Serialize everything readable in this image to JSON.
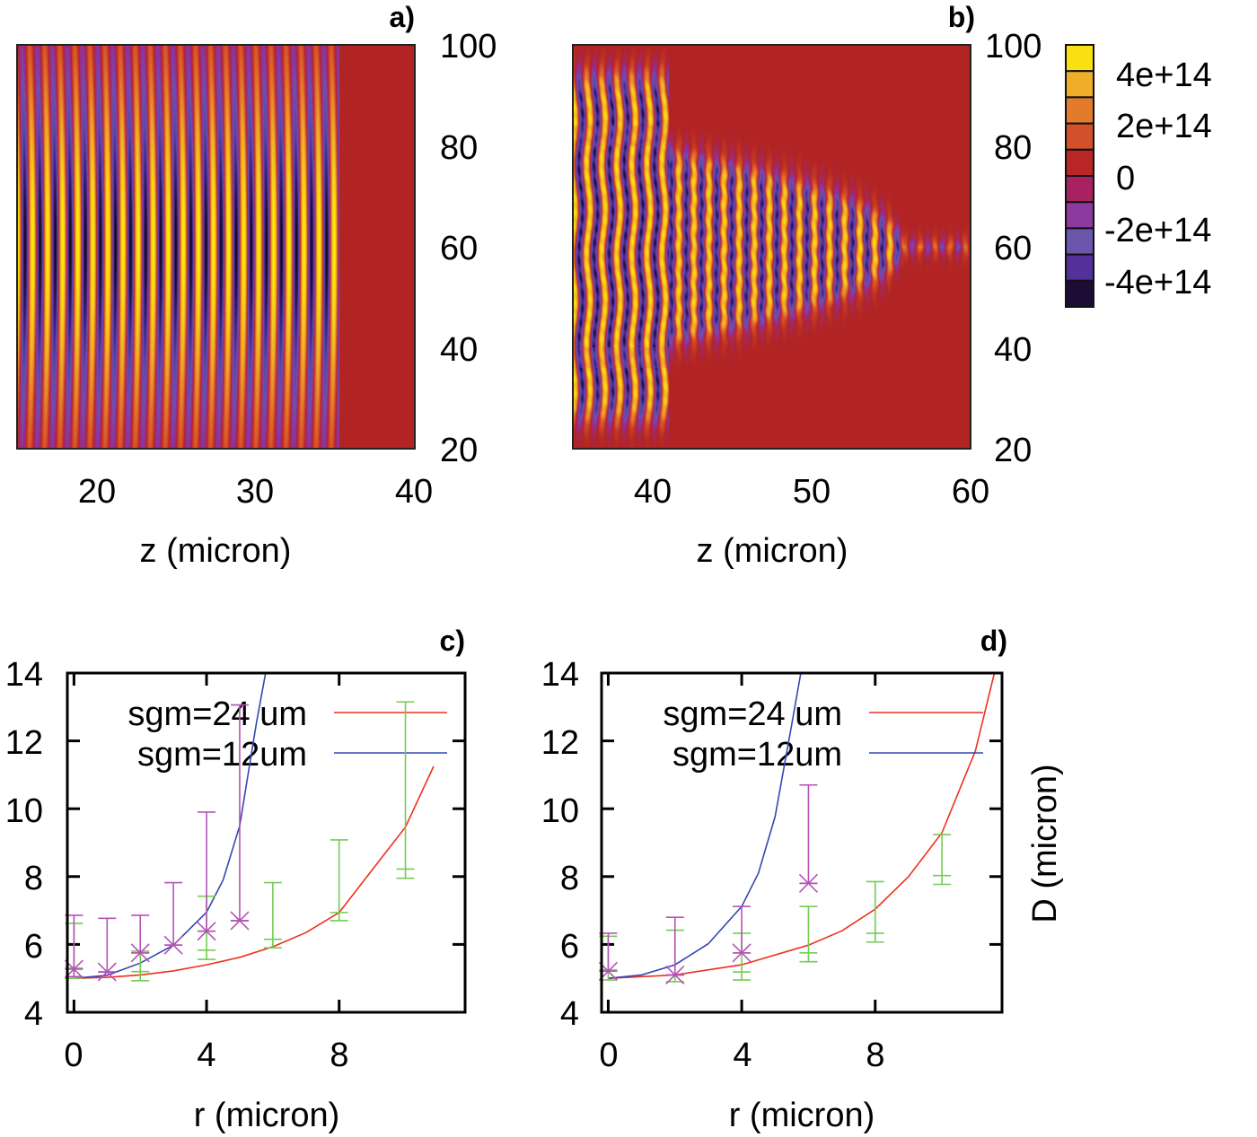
{
  "chart_data": [
    {
      "panel": "a)",
      "type": "heatmap",
      "xlabel": "z (micron)",
      "xlim": [
        15,
        40
      ],
      "ylim": [
        20,
        100
      ],
      "xticks": [
        "20",
        "30",
        "40"
      ],
      "yticks": [
        "100",
        "80",
        "60",
        "40",
        "20"
      ],
      "ytick_side": "right"
    },
    {
      "panel": "b)",
      "type": "heatmap",
      "xlabel": "z (micron)",
      "xlim": [
        35,
        60
      ],
      "ylim": [
        20,
        100
      ],
      "xticks": [
        "40",
        "50",
        "60"
      ],
      "yticks": [
        "100",
        "80",
        "60",
        "40",
        "20"
      ],
      "ytick_side": "right"
    },
    {
      "panel": "c)",
      "type": "line",
      "xlabel": "r (micron)",
      "ylabel": "",
      "xlim": [
        -0.2,
        11.8
      ],
      "ylim": [
        4,
        14
      ],
      "xticks": [
        "0",
        "4",
        "8"
      ],
      "yticks": [
        "14",
        "12",
        "10",
        "8",
        "6",
        "4"
      ],
      "legend_position": "top-left",
      "series": [
        {
          "name": "sgm=24 um",
          "color": "#f0301a",
          "kind": "curve",
          "x": [
            0,
            1,
            2,
            3,
            4,
            5,
            6,
            7,
            8,
            9,
            10,
            10.85
          ],
          "y": [
            5.0,
            5.03,
            5.1,
            5.22,
            5.4,
            5.62,
            5.93,
            6.35,
            6.94,
            8.2,
            9.46,
            11.25
          ]
        },
        {
          "name": "sgm=12um",
          "color": "#3448b0",
          "kind": "curve",
          "x": [
            0,
            1,
            2,
            3,
            4,
            4.5,
            5,
            5.5,
            5.78
          ],
          "y": [
            5.0,
            5.09,
            5.45,
            5.98,
            6.95,
            7.9,
            9.5,
            12.5,
            14.0
          ]
        },
        {
          "color": "#74cc52",
          "kind": "errorbars",
          "marker": "plus",
          "points": [
            {
              "x": 0,
              "y": 5.3,
              "low": 5.0,
              "high": 6.62
            },
            {
              "x": 2,
              "y": 5.2,
              "low": 4.93,
              "high": 5.8
            },
            {
              "x": 4,
              "y": 5.83,
              "low": 5.56,
              "high": 7.42
            },
            {
              "x": 6,
              "y": 6.15,
              "low": 5.9,
              "high": 7.82
            },
            {
              "x": 8,
              "y": 6.94,
              "low": 6.7,
              "high": 9.08
            },
            {
              "x": 10,
              "y": 8.22,
              "low": 7.95,
              "high": 13.15
            }
          ]
        },
        {
          "color": "#b452b4",
          "kind": "errorbars",
          "marker": "star",
          "points": [
            {
              "x": 0,
              "y": 5.27,
              "low": 5.05,
              "high": 6.86
            },
            {
              "x": 1,
              "y": 5.19,
              "low": 5.19,
              "high": 6.77
            },
            {
              "x": 2,
              "y": 5.75,
              "low": 5.75,
              "high": 6.86
            },
            {
              "x": 3,
              "y": 5.98,
              "low": 5.98,
              "high": 7.82
            },
            {
              "x": 4,
              "y": 6.39,
              "low": 6.39,
              "high": 9.9
            },
            {
              "x": 5,
              "y": 6.7,
              "low": 6.7,
              "high": 13.06
            }
          ]
        }
      ]
    },
    {
      "panel": "d)",
      "type": "line",
      "xlabel": "r (micron)",
      "ylabel": "D (micron)",
      "xlim": [
        -0.2,
        11.8
      ],
      "ylim": [
        4,
        14
      ],
      "xticks": [
        "0",
        "4",
        "8"
      ],
      "yticks": [
        "14",
        "12",
        "10",
        "8",
        "6",
        "4"
      ],
      "legend_position": "top-left",
      "series": [
        {
          "name": "sgm=24 um",
          "color": "#f0301a",
          "kind": "curve",
          "x": [
            0,
            2,
            4,
            6,
            7,
            8,
            9,
            10,
            11,
            11.57
          ],
          "y": [
            5.0,
            5.1,
            5.4,
            5.98,
            6.4,
            7.04,
            8.0,
            9.29,
            11.7,
            14.0
          ]
        },
        {
          "name": "sgm=12um",
          "color": "#3448b0",
          "kind": "curve",
          "x": [
            0,
            1,
            2,
            3,
            4,
            4.5,
            5,
            5.5,
            5.77
          ],
          "y": [
            5.0,
            5.1,
            5.4,
            6.02,
            7.12,
            8.1,
            9.77,
            12.5,
            14.0
          ]
        },
        {
          "color": "#74cc52",
          "kind": "errorbars",
          "marker": "plus",
          "points": [
            {
              "x": 0,
              "y": 5.25,
              "low": 4.95,
              "high": 6.24
            },
            {
              "x": 2,
              "y": 5.1,
              "low": 4.9,
              "high": 6.42
            },
            {
              "x": 4,
              "y": 5.19,
              "low": 4.95,
              "high": 6.33
            },
            {
              "x": 6,
              "y": 5.75,
              "low": 5.49,
              "high": 7.12
            },
            {
              "x": 8,
              "y": 6.33,
              "low": 6.07,
              "high": 7.85
            },
            {
              "x": 10,
              "y": 8.03,
              "low": 7.77,
              "high": 9.24
            }
          ]
        },
        {
          "color": "#b452b4",
          "kind": "errorbars",
          "marker": "star",
          "points": [
            {
              "x": 0,
              "y": 5.21,
              "low": 5.21,
              "high": 6.33
            },
            {
              "x": 2,
              "y": 5.1,
              "low": 5.1,
              "high": 6.8
            },
            {
              "x": 4,
              "y": 5.75,
              "low": 5.75,
              "high": 7.12
            },
            {
              "x": 6,
              "y": 7.8,
              "low": 7.8,
              "high": 10.7
            }
          ]
        }
      ]
    }
  ],
  "colorbar": {
    "range": [
      -500000000000000.0,
      500000000000000.0
    ],
    "tick_labels": [
      "4e+14",
      "2e+14",
      "0",
      "-2e+14",
      "-4e+14"
    ],
    "tick_values": [
      400000000000000.0,
      200000000000000.0,
      0,
      -200000000000000.0,
      -400000000000000.0
    ],
    "colors_top_to_bottom": [
      "#f8e012",
      "#eeae2a",
      "#e27c2c",
      "#d4502a",
      "#b82626",
      "#a82262",
      "#8c3aa0",
      "#6a56aa",
      "#54309a",
      "#1c0c36"
    ]
  }
}
